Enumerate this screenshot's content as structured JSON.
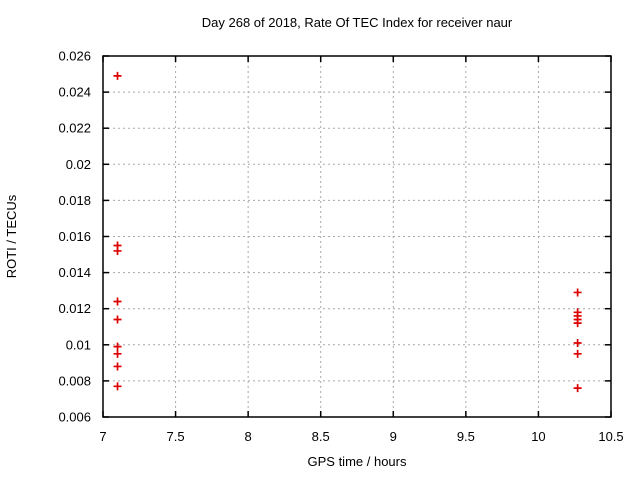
{
  "window": {
    "background_color": "#ffffff"
  },
  "chart_data": {
    "type": "scatter",
    "title": "Day 268 of 2018, Rate Of TEC Index for receiver naur",
    "xlabel": "GPS time / hours",
    "ylabel": "ROTI / TECUs",
    "xlim": [
      7,
      10.5
    ],
    "ylim": [
      0.006,
      0.026
    ],
    "xtick_values": [
      7,
      7.5,
      8,
      8.5,
      9,
      9.5,
      10,
      10.5
    ],
    "xtick_labels": [
      "7",
      "7.5",
      "8",
      "8.5",
      "9",
      "9.5",
      "10",
      "10.5"
    ],
    "ytick_values": [
      0.006,
      0.008,
      0.01,
      0.012,
      0.014,
      0.016,
      0.018,
      0.02,
      0.022,
      0.024,
      0.026
    ],
    "ytick_labels": [
      "0.006",
      "0.008",
      "0.01",
      "0.012",
      "0.014",
      "0.016",
      "0.018",
      "0.02",
      "0.022",
      "0.024",
      "0.026"
    ],
    "grid": true,
    "legend": "none",
    "marker": "plus",
    "marker_color": "#dd0000",
    "grid_color": "#a8a8a8",
    "frame_color": "#000000",
    "series": [
      {
        "name": "ROTI",
        "points": [
          [
            7.1,
            0.0249
          ],
          [
            7.1,
            0.0155
          ],
          [
            7.1,
            0.0152
          ],
          [
            7.1,
            0.0124
          ],
          [
            7.1,
            0.0114
          ],
          [
            7.1,
            0.0099
          ],
          [
            7.1,
            0.0095
          ],
          [
            7.1,
            0.0088
          ],
          [
            7.1,
            0.0077
          ],
          [
            10.27,
            0.0129
          ],
          [
            10.27,
            0.0118
          ],
          [
            10.27,
            0.0116
          ],
          [
            10.27,
            0.0114
          ],
          [
            10.27,
            0.0112
          ],
          [
            10.27,
            0.0101
          ],
          [
            10.27,
            0.0095
          ],
          [
            10.27,
            0.0076
          ]
        ]
      }
    ]
  }
}
